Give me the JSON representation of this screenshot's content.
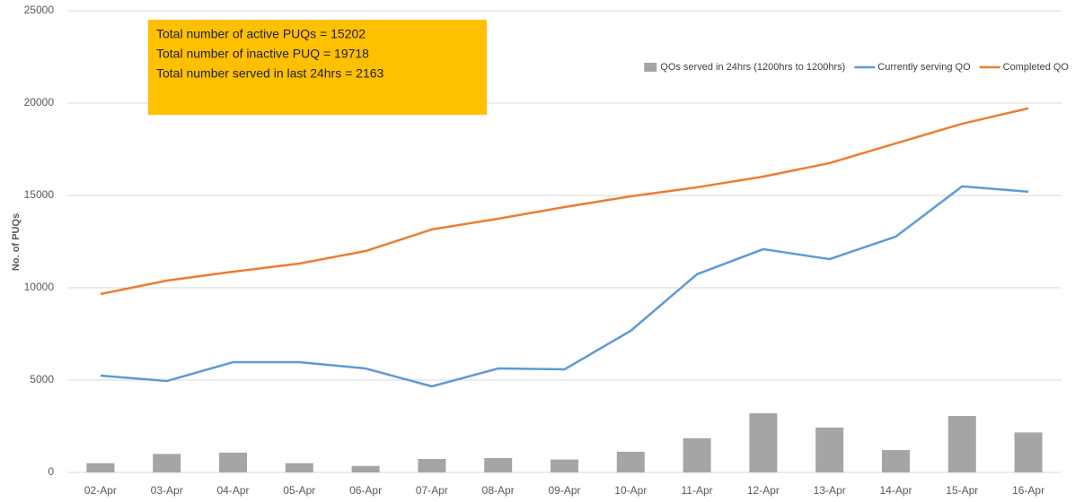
{
  "chart_data": {
    "type": "combo",
    "y_label": "No. of PUQs",
    "annotations": [
      "Total number of active PUQs = 15202",
      "Total number of inactive PUQ = 19718",
      "Total number served in last 24hrs = 2163"
    ],
    "annotation_color": "#ffc000",
    "categories": [
      "02-Apr",
      "03-Apr",
      "04-Apr",
      "05-Apr",
      "06-Apr",
      "07-Apr",
      "08-Apr",
      "09-Apr",
      "10-Apr",
      "11-Apr",
      "12-Apr",
      "13-Apr",
      "14-Apr",
      "15-Apr",
      "16-Apr"
    ],
    "series": [
      {
        "name": "QOs served in 24hrs (1200hrs to 1200hrs)",
        "type": "bar",
        "color": "#a5a5a5",
        "values": [
          500,
          1000,
          1070,
          500,
          350,
          730,
          780,
          700,
          1120,
          1850,
          3200,
          2430,
          1210,
          3060,
          2163
        ]
      },
      {
        "name": "Currently serving QO",
        "type": "line",
        "color": "#5b9bd5",
        "values": [
          5240,
          4950,
          5970,
          5970,
          5630,
          4660,
          5630,
          5580,
          7670,
          10730,
          12090,
          11550,
          12770,
          15490,
          15202
        ]
      },
      {
        "name": "Completed QO",
        "type": "line",
        "color": "#ed7d31",
        "values": [
          9660,
          10390,
          10870,
          11310,
          11990,
          13160,
          13740,
          14370,
          14950,
          15440,
          16020,
          16750,
          17820,
          18880,
          19718
        ]
      }
    ],
    "ylim": [
      0,
      25000
    ],
    "yticks": [
      0,
      5000,
      10000,
      15000,
      20000,
      25000
    ],
    "grid": true,
    "legend": "top-right"
  }
}
